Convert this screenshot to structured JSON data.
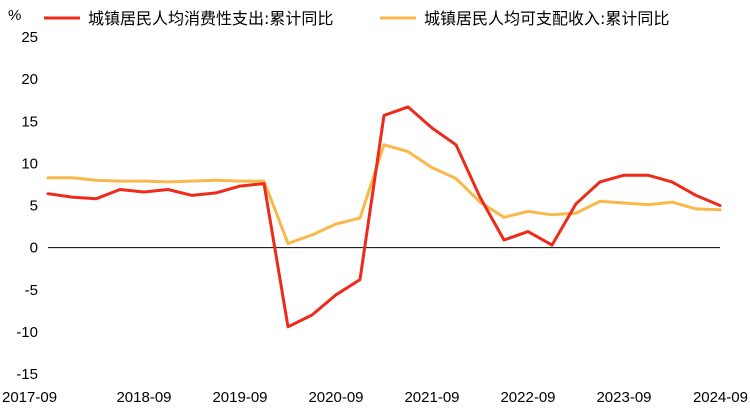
{
  "chart_data": {
    "type": "line",
    "title": "",
    "xlabel": "",
    "ylabel": "%",
    "ylim": [
      -15,
      25
    ],
    "yticks": [
      25,
      20,
      15,
      10,
      5,
      0,
      -5,
      -10,
      -15
    ],
    "xticks": [
      "2017-09",
      "2018-09",
      "2019-09",
      "2020-09",
      "2021-09",
      "2022-09",
      "2023-09",
      "2024-09"
    ],
    "grid": false,
    "legend": "top",
    "x": [
      "2017-09",
      "2017-12",
      "2018-03",
      "2018-06",
      "2018-09",
      "2018-12",
      "2019-03",
      "2019-06",
      "2019-09",
      "2019-12",
      "2020-03",
      "2020-06",
      "2020-09",
      "2020-12",
      "2021-03",
      "2021-06",
      "2021-09",
      "2021-12",
      "2022-03",
      "2022-06",
      "2022-09",
      "2022-12",
      "2023-03",
      "2023-06",
      "2023-09",
      "2023-12",
      "2024-03",
      "2024-06",
      "2024-09"
    ],
    "series": [
      {
        "name": "城镇居民人均消费性支出:累计同比",
        "color": "#ee2b1b",
        "values": [
          6.4,
          6.0,
          5.8,
          6.9,
          6.6,
          6.9,
          6.2,
          6.5,
          7.3,
          7.6,
          -9.4,
          -8.0,
          -5.6,
          -3.8,
          15.7,
          16.7,
          14.2,
          12.2,
          6.0,
          0.9,
          1.9,
          0.3,
          5.2,
          7.8,
          8.6,
          8.6,
          7.8,
          6.2,
          5.0
        ]
      },
      {
        "name": "城镇居民人均可支配收入:累计同比",
        "color": "#f9b84b",
        "values": [
          8.3,
          8.3,
          8.0,
          7.9,
          7.9,
          7.8,
          7.9,
          8.0,
          7.9,
          7.9,
          0.5,
          1.5,
          2.8,
          3.5,
          12.2,
          11.4,
          9.5,
          8.2,
          5.4,
          3.6,
          4.3,
          3.9,
          4.1,
          5.5,
          5.3,
          5.1,
          5.4,
          4.6,
          4.5
        ]
      }
    ]
  }
}
